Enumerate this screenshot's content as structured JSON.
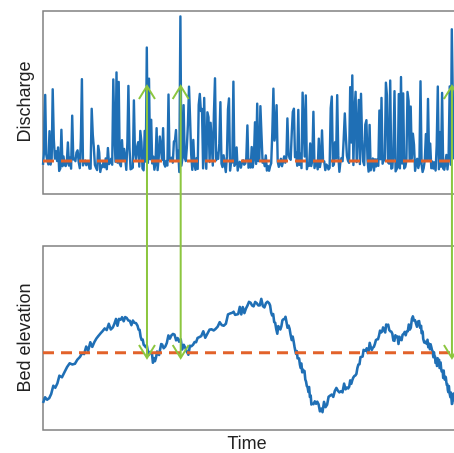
{
  "chart_data": [
    {
      "type": "line",
      "ylabel": "Discharge",
      "xlabel": "",
      "legend": "none",
      "grid": false,
      "threshold_style": "dashed",
      "threshold": 0.18,
      "ylim": [
        0,
        1
      ],
      "x_range": [
        0,
        1
      ],
      "colors": {
        "series": "#1f6fb5",
        "threshold": "#e2622a",
        "arrows": "#8cc63f",
        "axes": "#7f7f7f"
      },
      "series": [
        {
          "seed": 7,
          "n": 380,
          "noise_base": 0.08,
          "spike_scale": 0.48,
          "spike_prob": 0.55,
          "peaks": [
            {
              "x": 0.253,
              "y": 0.8
            },
            {
              "x": 0.335,
              "y": 0.97
            },
            {
              "x": 0.995,
              "y": 0.9
            }
          ]
        }
      ]
    },
    {
      "type": "line",
      "ylabel": "Bed elevation",
      "xlabel": "Time",
      "legend": "none",
      "grid": false,
      "threshold_style": "dashed",
      "threshold": 0.42,
      "ylim": [
        0,
        1
      ],
      "x_range": [
        0,
        1
      ],
      "colors": {
        "series": "#1f6fb5",
        "threshold": "#e2622a",
        "arrows": "#8cc63f",
        "axes": "#7f7f7f"
      },
      "series": [
        {
          "seed": 11,
          "points": [
            [
              0.0,
              0.14
            ],
            [
              0.04,
              0.28
            ],
            [
              0.09,
              0.4
            ],
            [
              0.13,
              0.5
            ],
            [
              0.17,
              0.58
            ],
            [
              0.2,
              0.6
            ],
            [
              0.23,
              0.56
            ],
            [
              0.25,
              0.45
            ],
            [
              0.27,
              0.38
            ],
            [
              0.29,
              0.46
            ],
            [
              0.32,
              0.52
            ],
            [
              0.35,
              0.42
            ],
            [
              0.38,
              0.5
            ],
            [
              0.42,
              0.56
            ],
            [
              0.46,
              0.62
            ],
            [
              0.49,
              0.66
            ],
            [
              0.52,
              0.7
            ],
            [
              0.55,
              0.68
            ],
            [
              0.57,
              0.54
            ],
            [
              0.59,
              0.6
            ],
            [
              0.61,
              0.48
            ],
            [
              0.625,
              0.36
            ],
            [
              0.64,
              0.28
            ],
            [
              0.655,
              0.14
            ],
            [
              0.68,
              0.12
            ],
            [
              0.71,
              0.2
            ],
            [
              0.74,
              0.24
            ],
            [
              0.76,
              0.3
            ],
            [
              0.78,
              0.42
            ],
            [
              0.8,
              0.46
            ],
            [
              0.82,
              0.52
            ],
            [
              0.84,
              0.56
            ],
            [
              0.86,
              0.48
            ],
            [
              0.88,
              0.52
            ],
            [
              0.9,
              0.6
            ],
            [
              0.92,
              0.56
            ],
            [
              0.93,
              0.48
            ],
            [
              0.945,
              0.45
            ],
            [
              0.955,
              0.38
            ],
            [
              0.965,
              0.36
            ],
            [
              0.975,
              0.3
            ],
            [
              0.985,
              0.24
            ],
            [
              0.995,
              0.16
            ],
            [
              1.0,
              0.18
            ]
          ]
        }
      ]
    }
  ],
  "arrows": [
    {
      "x_from": 0.253,
      "x_to": 0.253
    },
    {
      "x_from": 0.335,
      "x_to": 0.335
    },
    {
      "x_from": 0.995,
      "x_to": 0.995
    }
  ]
}
